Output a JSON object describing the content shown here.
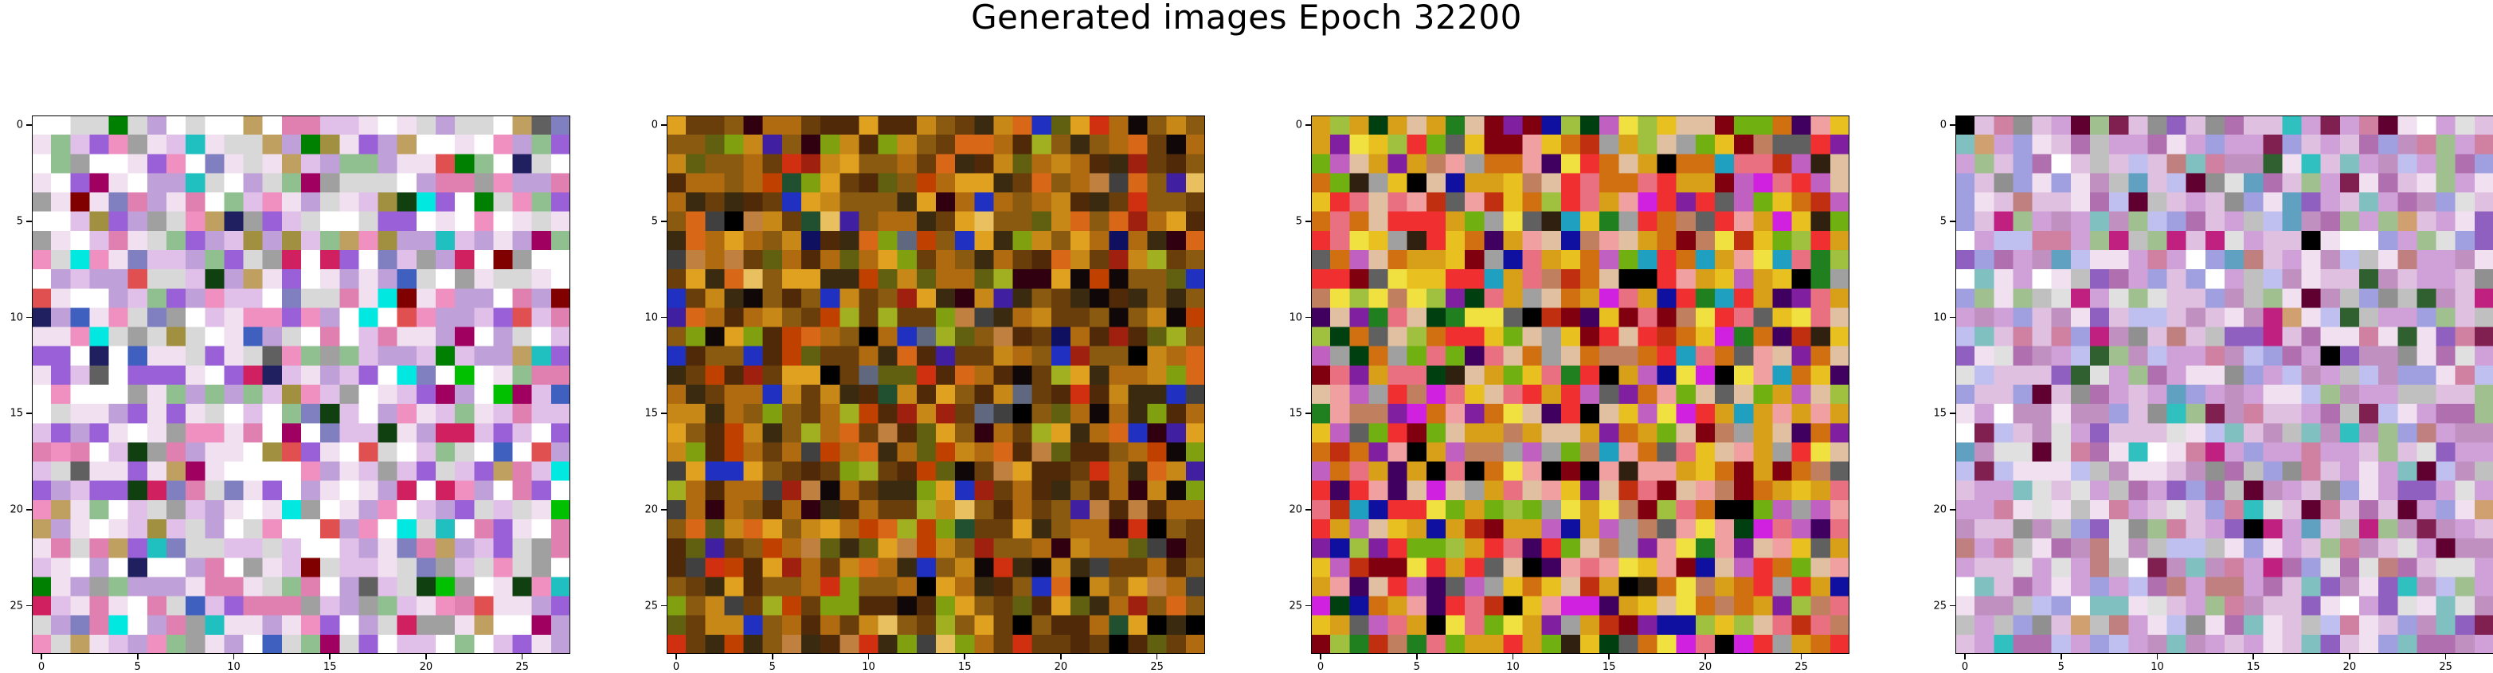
{
  "figure": {
    "title": "Generated images Epoch 32200"
  },
  "axes": {
    "x_ticks": [
      "0",
      "5",
      "10",
      "15",
      "20",
      "25"
    ],
    "y_ticks": [
      "0",
      "5",
      "10",
      "15",
      "20",
      "25"
    ],
    "tick_values": [
      0,
      5,
      10,
      15,
      20,
      25
    ],
    "image_size": 28
  },
  "panels": [
    {
      "name": "generated-image-1",
      "palette": [
        "#9a60d8",
        "#c0a0d8",
        "#e0c0e8",
        "#f0e0f0",
        "#ffffff",
        "#d8d8d8",
        "#90c090",
        "#e080b0",
        "#f090c0",
        "#20c0c0",
        "#00e8e0",
        "#8080c0",
        "#606060",
        "#a09040",
        "#c0a060",
        "#008000",
        "#00c000",
        "#d02060",
        "#a00060",
        "#4060c0",
        "#202060",
        "#800000",
        "#104010",
        "#e05050",
        "#a0a0a0"
      ],
      "weights": [
        8,
        10,
        14,
        16,
        18,
        10,
        4,
        6,
        6,
        1,
        1,
        4,
        2,
        2,
        3,
        1,
        1,
        2,
        2,
        2,
        1,
        1,
        1,
        2,
        6
      ],
      "seed": 11
    },
    {
      "name": "generated-image-2",
      "palette": [
        "#6a3e0a",
        "#8a5a10",
        "#b06a10",
        "#c88818",
        "#e0a020",
        "#502a08",
        "#3a2a10",
        "#606010",
        "#80a010",
        "#a0b020",
        "#d86818",
        "#c04000",
        "#d03010",
        "#a02010",
        "#300010",
        "#100808",
        "#2030c0",
        "#4020a0",
        "#101060",
        "#205030",
        "#404040",
        "#606880",
        "#e8c060",
        "#c08040",
        "#000000"
      ],
      "weights": [
        14,
        14,
        12,
        9,
        6,
        12,
        10,
        6,
        4,
        3,
        6,
        5,
        3,
        3,
        3,
        3,
        2,
        2,
        1,
        2,
        2,
        1,
        1,
        3,
        2
      ],
      "seed": 27
    },
    {
      "name": "generated-image-3",
      "palette": [
        "#d8a018",
        "#e8c020",
        "#f0e040",
        "#d07010",
        "#c03010",
        "#f03030",
        "#e87080",
        "#f0a0a0",
        "#e0c0a0",
        "#c060c0",
        "#d020e0",
        "#8020a0",
        "#400060",
        "#000000",
        "#1010a0",
        "#20a0c0",
        "#208020",
        "#70b010",
        "#a0c040",
        "#606060",
        "#a0a0a0",
        "#c08060",
        "#800010",
        "#004010",
        "#302010"
      ],
      "weights": [
        10,
        7,
        4,
        8,
        5,
        7,
        9,
        7,
        8,
        5,
        3,
        4,
        3,
        4,
        2,
        2,
        3,
        4,
        3,
        3,
        4,
        4,
        4,
        2,
        2
      ],
      "seed": 53
    },
    {
      "name": "generated-image-4",
      "palette": [
        "#d0a0d8",
        "#e0c0e0",
        "#f0e0f0",
        "#c090c0",
        "#b070b0",
        "#9060c0",
        "#a0a0e0",
        "#c0c0f0",
        "#e0e0e0",
        "#c0c0c0",
        "#909090",
        "#a0c090",
        "#80c0c0",
        "#60a0c0",
        "#c08080",
        "#d080a0",
        "#802050",
        "#600030",
        "#200010",
        "#000000",
        "#c02080",
        "#30c0c0",
        "#d0a070",
        "#306030",
        "#ffffff"
      ],
      "weights": [
        18,
        16,
        12,
        10,
        8,
        6,
        8,
        8,
        8,
        6,
        4,
        4,
        3,
        2,
        4,
        4,
        2,
        2,
        1,
        1,
        2,
        1,
        2,
        1,
        4
      ],
      "seed": 89
    }
  ]
}
